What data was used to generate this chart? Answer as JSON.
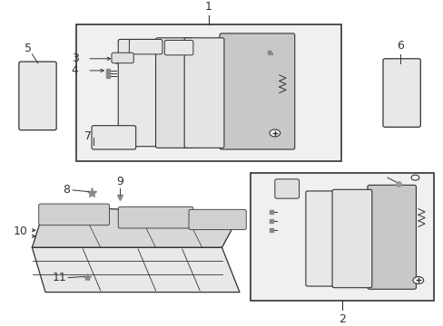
{
  "bg_color": "#ffffff",
  "diagram_bg": "#f0f0f0",
  "line_color": "#333333",
  "fig_width": 4.89,
  "fig_height": 3.6,
  "dpi": 100
}
